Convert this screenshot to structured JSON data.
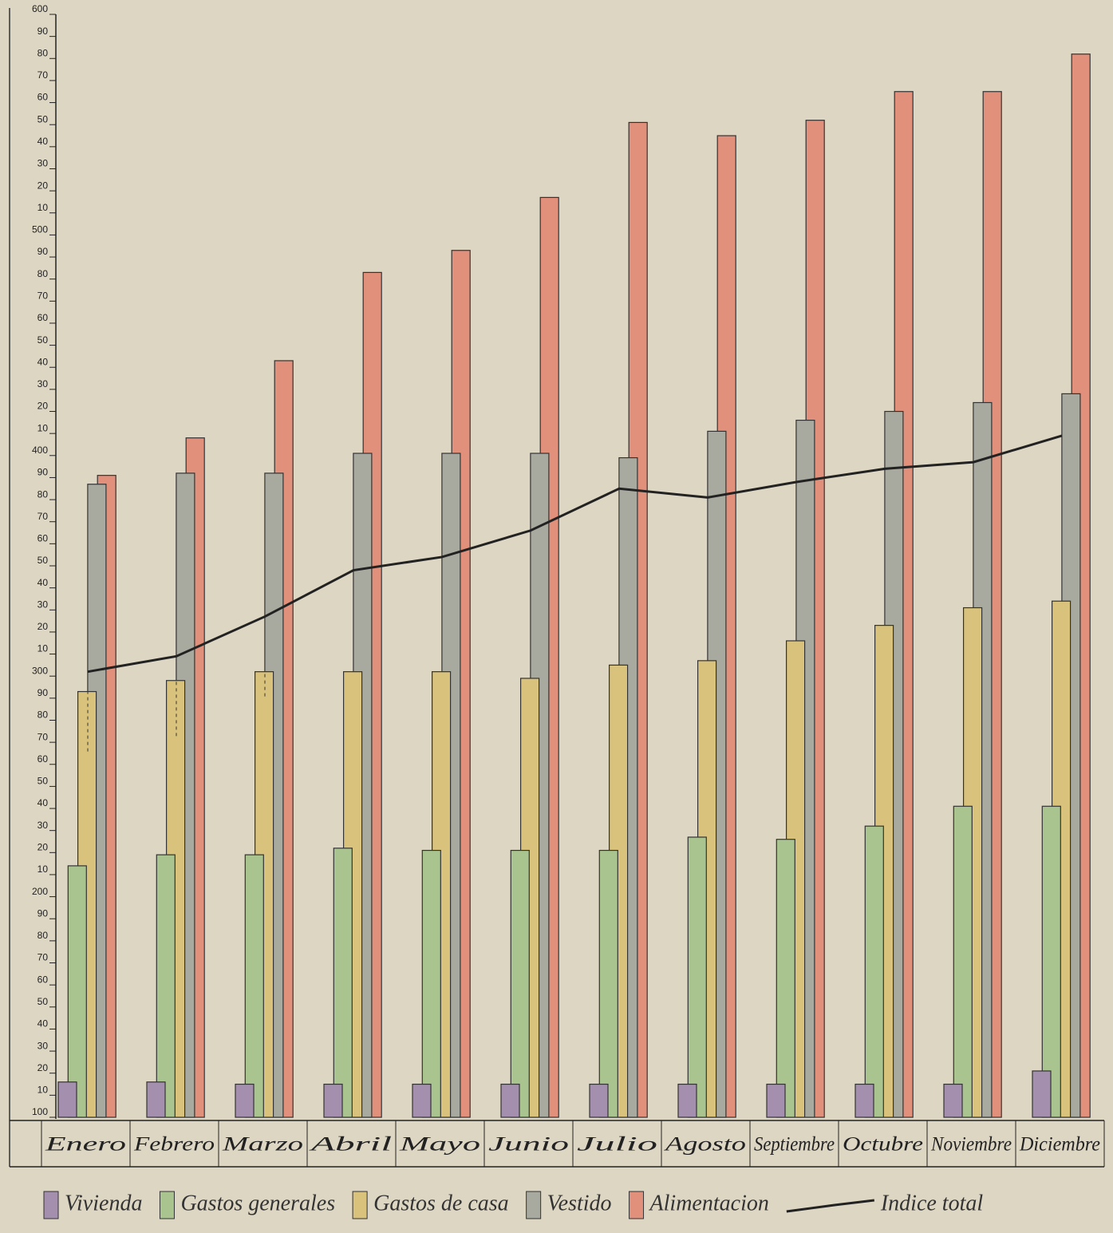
{
  "chart_data": {
    "type": "bar",
    "categories": [
      "Enero",
      "Febrero",
      "Marzo",
      "Abril",
      "Mayo",
      "Junio",
      "Julio",
      "Agosto",
      "Septiembre",
      "Octubre",
      "Noviembre",
      "Diciembre"
    ],
    "series": [
      {
        "name": "Vivienda",
        "color": "#a58fae",
        "values": [
          116,
          116,
          115,
          115,
          115,
          115,
          115,
          115,
          115,
          115,
          115,
          121
        ]
      },
      {
        "name": "Gastos generales",
        "color": "#a9c48f",
        "values": [
          214,
          219,
          219,
          222,
          221,
          221,
          221,
          227,
          226,
          232,
          241,
          241
        ]
      },
      {
        "name": "Gastos de casa",
        "color": "#d9c27b",
        "values": [
          293,
          298,
          302,
          302,
          302,
          299,
          305,
          307,
          316,
          323,
          331,
          334
        ]
      },
      {
        "name": "Vestido",
        "color": "#a9aa9f",
        "values": [
          387,
          392,
          392,
          401,
          401,
          401,
          399,
          411,
          416,
          420,
          424,
          428
        ]
      },
      {
        "name": "Alimentacion",
        "color": "#e0907b",
        "values": [
          391,
          408,
          443,
          483,
          493,
          517,
          551,
          545,
          552,
          565,
          565,
          582
        ]
      },
      {
        "name": "Indice total",
        "color": "#222222",
        "type": "line",
        "values": [
          302,
          309,
          327,
          348,
          354,
          366,
          385,
          381,
          388,
          394,
          397,
          409
        ]
      }
    ],
    "ylim": [
      100,
      600
    ],
    "yticks": [
      100,
      {
        "value": 110,
        "label": "10"
      },
      {
        "value": 120,
        "label": "20"
      },
      {
        "value": 130,
        "label": "30"
      },
      {
        "value": 140,
        "label": "40"
      },
      {
        "value": 150,
        "label": "50"
      },
      {
        "value": 160,
        "label": "60"
      },
      {
        "value": 170,
        "label": "70"
      },
      {
        "value": 180,
        "label": "80"
      },
      {
        "value": 190,
        "label": "90"
      },
      200,
      {
        "value": 210,
        "label": "10"
      },
      {
        "value": 220,
        "label": "20"
      },
      {
        "value": 230,
        "label": "30"
      },
      {
        "value": 240,
        "label": "40"
      },
      {
        "value": 250,
        "label": "50"
      },
      {
        "value": 260,
        "label": "60"
      },
      {
        "value": 270,
        "label": "70"
      },
      {
        "value": 280,
        "label": "80"
      },
      {
        "value": 290,
        "label": "90"
      },
      300,
      {
        "value": 310,
        "label": "10"
      },
      {
        "value": 320,
        "label": "20"
      },
      {
        "value": 330,
        "label": "30"
      },
      {
        "value": 340,
        "label": "40"
      },
      {
        "value": 350,
        "label": "50"
      },
      {
        "value": 360,
        "label": "60"
      },
      {
        "value": 370,
        "label": "70"
      },
      {
        "value": 380,
        "label": "80"
      },
      {
        "value": 390,
        "label": "90"
      },
      400,
      {
        "value": 410,
        "label": "10"
      },
      {
        "value": 420,
        "label": "20"
      },
      {
        "value": 430,
        "label": "30"
      },
      {
        "value": 440,
        "label": "40"
      },
      {
        "value": 450,
        "label": "50"
      },
      {
        "value": 460,
        "label": "60"
      },
      {
        "value": 470,
        "label": "70"
      },
      {
        "value": 480,
        "label": "80"
      },
      {
        "value": 490,
        "label": "90"
      },
      500,
      {
        "value": 510,
        "label": "10"
      },
      {
        "value": 520,
        "label": "20"
      },
      {
        "value": 530,
        "label": "30"
      },
      {
        "value": 540,
        "label": "40"
      },
      {
        "value": 550,
        "label": "50"
      },
      {
        "value": 560,
        "label": "60"
      },
      {
        "value": 570,
        "label": "70"
      },
      {
        "value": 580,
        "label": "80"
      },
      {
        "value": 590,
        "label": "90"
      },
      600
    ],
    "grid": false
  }
}
